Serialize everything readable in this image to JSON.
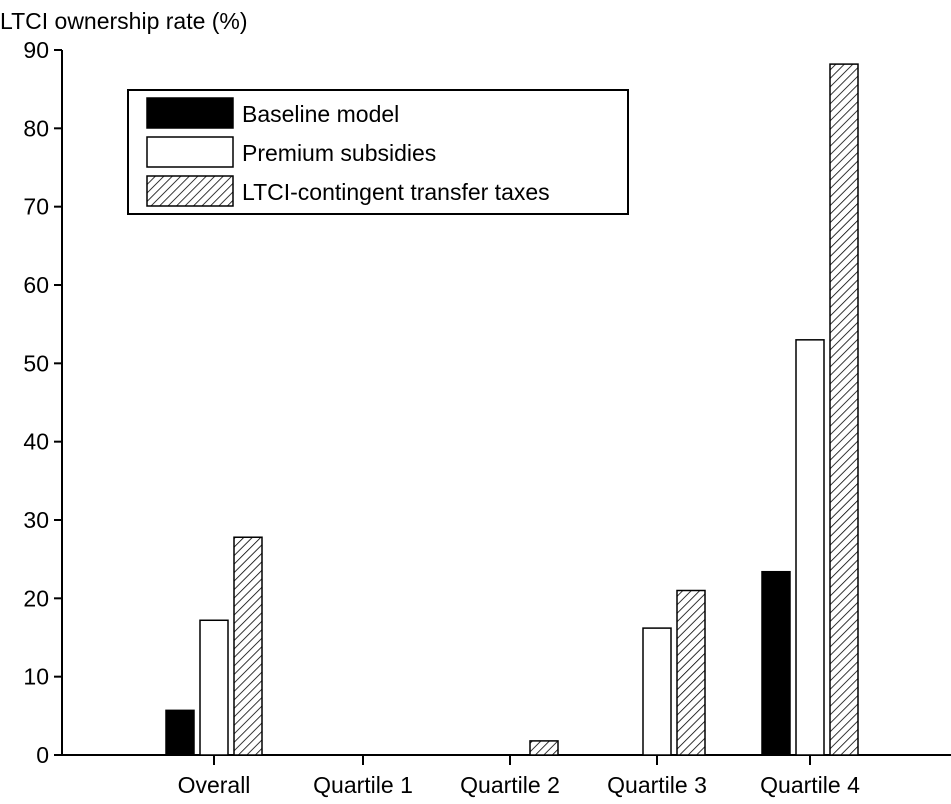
{
  "chart_data": {
    "type": "bar",
    "title": "",
    "ylabel": "LTCI ownership rate (%)",
    "xlabel": "",
    "ylim": [
      0,
      90
    ],
    "yticks": [
      0,
      10,
      20,
      30,
      40,
      50,
      60,
      70,
      80,
      90
    ],
    "grid": false,
    "legend_position": "top-left",
    "categories": [
      "Overall",
      "Quartile 1",
      "Quartile 2",
      "Quartile 3",
      "Quartile 4"
    ],
    "series": [
      {
        "name": "Baseline model",
        "fill": "solid",
        "color": "#000000",
        "values": [
          5.7,
          0,
          0,
          0,
          23.4
        ]
      },
      {
        "name": "Premium subsidies",
        "fill": "hollow",
        "color": "#ffffff",
        "values": [
          17.2,
          0,
          0,
          16.2,
          53.0
        ]
      },
      {
        "name": "LTCI-contingent transfer taxes",
        "fill": "hatched",
        "color": "#000000",
        "values": [
          27.8,
          0,
          1.8,
          21.0,
          88.2
        ]
      }
    ]
  }
}
